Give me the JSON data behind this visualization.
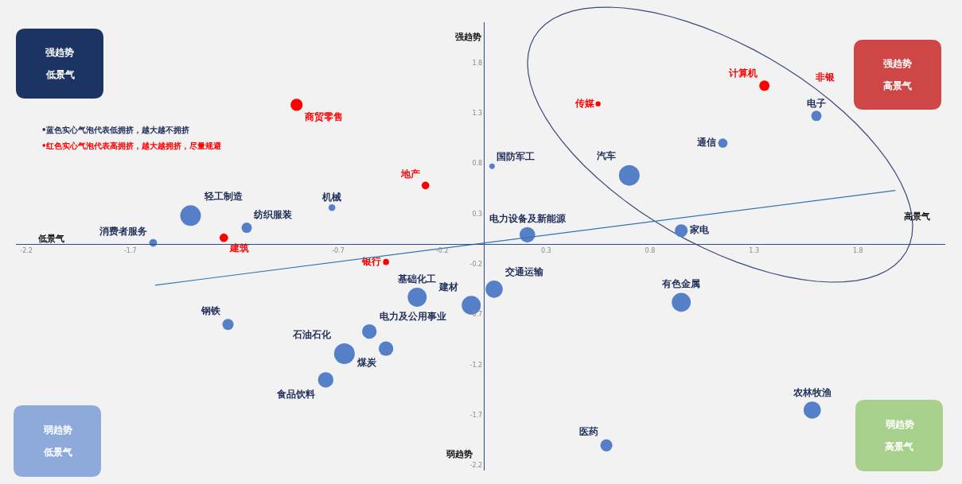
{
  "chart_data": {
    "type": "bubble",
    "xlim": [
      -2.25,
      2.22
    ],
    "ylim": [
      -2.25,
      2.2
    ],
    "xticks": [
      -2.2,
      -1.7,
      -0.7,
      -0.2,
      0.3,
      0.8,
      1.3,
      1.8
    ],
    "yticks": [
      -2.2,
      -1.7,
      -1.2,
      -0.7,
      -0.2,
      0.3,
      0.8,
      1.3,
      1.8
    ],
    "grid": false,
    "series": [
      {
        "color": "#5580c8",
        "x": [
          1.6,
          1.15,
          0.7,
          0.04,
          0.21,
          0.95,
          0.95,
          0.05,
          -0.06,
          -0.32,
          -0.55,
          -0.47,
          -0.67,
          -0.76,
          -1.23,
          -1.14,
          -1.41,
          -1.59,
          -0.73,
          1.58,
          0.59
        ],
        "values": [
          1.27,
          1.0,
          0.68,
          0.77,
          0.09,
          0.13,
          -0.58,
          -0.45,
          -0.61,
          -0.53,
          -0.87,
          -1.04,
          -1.09,
          -1.35,
          -0.8,
          0.16,
          0.28,
          0.01,
          0.36,
          -1.65,
          -2.0
        ],
        "sizes": [
          0.25,
          0.21,
          1,
          0.07,
          0.56,
          0.39,
          0.84,
          0.69,
          0.84,
          0.84,
          0.5,
          0.5,
          1,
          0.56,
          0.29,
          0.25,
          1,
          0.14,
          0.11,
          0.69,
          0.34
        ],
        "value_labels": [
          "电子",
          "通信",
          "汽车",
          "国防军工",
          "电力设备及新能源",
          "家电",
          "有色金属",
          "交通运输",
          "建材",
          "基础化工",
          "电力及公用事业",
          "煤炭",
          "石油石化",
          "食品饮料",
          "钢铁",
          "纺织服装",
          "轻工制造",
          "消费者服务",
          "机械",
          "农林牧渔",
          "医药"
        ]
      },
      {
        "color": "#ff0000",
        "x": [
          1.35,
          0.55,
          -0.9,
          -0.28,
          -1.25,
          -0.47
        ],
        "values": [
          1.57,
          1.39,
          1.38,
          0.58,
          0.06,
          -0.18
        ],
        "sizes": [
          0.25,
          0.06,
          0.34,
          0.14,
          0.17,
          0.085
        ],
        "value_labels": [
          "计算机",
          "传媒",
          "商贸零售",
          "地产",
          "建筑",
          "银行"
        ]
      },
      {
        "type": "line",
        "color": "#2e75b6",
        "x": [
          -1.58,
          1.98
        ],
        "values": [
          -0.41,
          0.53
        ]
      }
    ],
    "annotations": [
      "强趋势",
      "低景气",
      "强趋势",
      "高景气",
      "弱趋势",
      "低景气",
      "弱趋势",
      "高景气",
      "强趋势",
      "弱趋势",
      "低景气",
      "高景气",
      "•蓝色实心气泡代表低拥挤，越大越不拥挤",
      "•红色实心气泡代表高拥挤，越大越拥挤，尽量规避",
      "非银"
    ]
  }
}
